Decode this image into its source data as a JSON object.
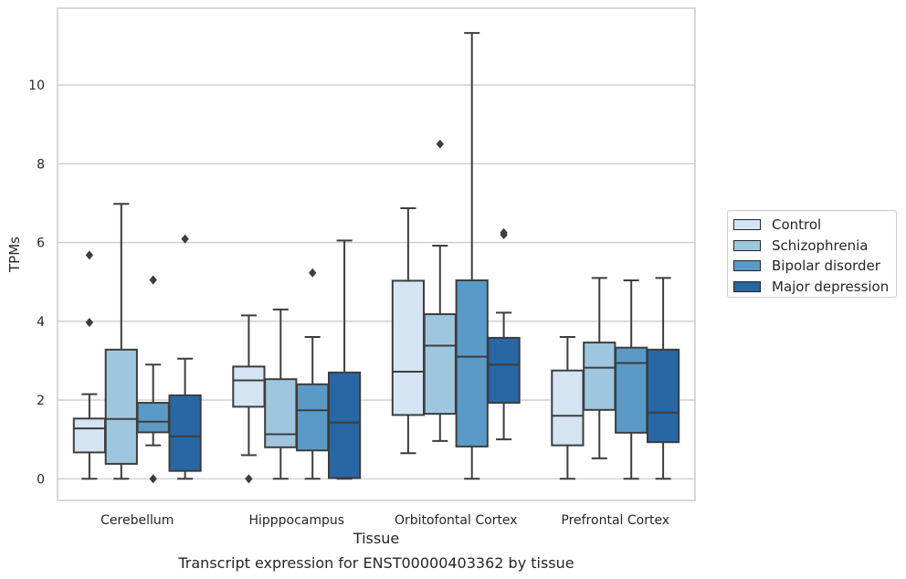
{
  "chart_data": {
    "type": "box",
    "title": "Transcript expression for ENST00000403362 by tissue",
    "xlabel": "Tissue",
    "ylabel": "TPMs",
    "ylim": [
      -0.55,
      11.95
    ],
    "yticks": [
      0,
      2,
      4,
      6,
      8,
      10
    ],
    "grid": "horizontal",
    "legend_position": "right",
    "categories": [
      "Cerebellum",
      "Hipppocampus",
      "Orbitofontal Cortex",
      "Prefrontal Cortex"
    ],
    "series": [
      {
        "name": "Control",
        "color": "#d4e4f2",
        "boxes": [
          {
            "whislo": 0.0,
            "q1": 0.67,
            "med": 1.28,
            "q3": 1.53,
            "whishi": 2.15,
            "fliers": [
              3.97,
              5.68
            ]
          },
          {
            "whislo": 0.6,
            "q1": 1.83,
            "med": 2.5,
            "q3": 2.85,
            "whishi": 4.15,
            "fliers": [
              0.0
            ]
          },
          {
            "whislo": 0.65,
            "q1": 1.62,
            "med": 2.72,
            "q3": 5.03,
            "whishi": 6.87,
            "fliers": []
          },
          {
            "whislo": 0.0,
            "q1": 0.85,
            "med": 1.6,
            "q3": 2.75,
            "whishi": 3.6,
            "fliers": []
          }
        ]
      },
      {
        "name": "Schizophrenia",
        "color": "#9fc6df",
        "boxes": [
          {
            "whislo": 0.0,
            "q1": 0.38,
            "med": 1.52,
            "q3": 3.28,
            "whishi": 6.98,
            "fliers": []
          },
          {
            "whislo": 0.0,
            "q1": 0.8,
            "med": 1.13,
            "q3": 2.53,
            "whishi": 4.3,
            "fliers": []
          },
          {
            "whislo": 0.96,
            "q1": 1.65,
            "med": 3.38,
            "q3": 4.18,
            "whishi": 5.92,
            "fliers": [
              8.5
            ]
          },
          {
            "whislo": 0.52,
            "q1": 1.75,
            "med": 2.82,
            "q3": 3.46,
            "whishi": 5.1,
            "fliers": []
          }
        ]
      },
      {
        "name": "Bipolar disorder",
        "color": "#5b9ac6",
        "boxes": [
          {
            "whislo": 0.85,
            "q1": 1.18,
            "med": 1.45,
            "q3": 1.93,
            "whishi": 2.9,
            "fliers": [
              0.0,
              5.05
            ]
          },
          {
            "whislo": 0.0,
            "q1": 0.72,
            "med": 1.74,
            "q3": 2.4,
            "whishi": 3.6,
            "fliers": [
              5.23
            ]
          },
          {
            "whislo": 0.0,
            "q1": 0.82,
            "med": 3.1,
            "q3": 5.04,
            "whishi": 11.32,
            "fliers": []
          },
          {
            "whislo": 0.0,
            "q1": 1.17,
            "med": 2.94,
            "q3": 3.33,
            "whishi": 5.04,
            "fliers": []
          }
        ]
      },
      {
        "name": "Major depression",
        "color": "#2866a4",
        "boxes": [
          {
            "whislo": 0.0,
            "q1": 0.2,
            "med": 1.08,
            "q3": 2.12,
            "whishi": 3.05,
            "fliers": [
              6.09
            ]
          },
          {
            "whislo": 0.0,
            "q1": 0.02,
            "med": 1.43,
            "q3": 2.7,
            "whishi": 6.05,
            "fliers": []
          },
          {
            "whislo": 1.0,
            "q1": 1.93,
            "med": 2.9,
            "q3": 3.58,
            "whishi": 4.22,
            "fliers": [
              6.2,
              6.25
            ]
          },
          {
            "whislo": 0.0,
            "q1": 0.93,
            "med": 1.68,
            "q3": 3.28,
            "whishi": 5.1,
            "fliers": []
          }
        ]
      }
    ]
  }
}
